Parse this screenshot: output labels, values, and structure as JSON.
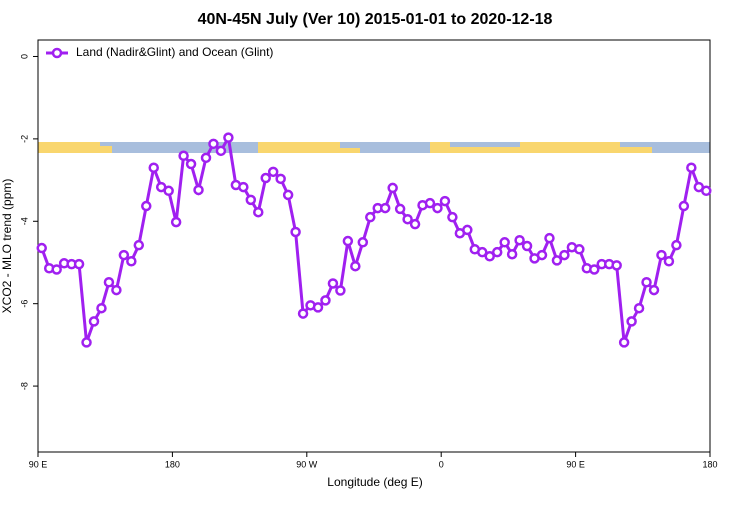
{
  "chart_data": {
    "type": "line",
    "title": "40N-45N July (Ver 10)   2015-01-01 to 2020-12-18",
    "x_label": "Longitude (deg E)",
    "y_label": "XCO2 - MLO trend (ppm)",
    "legend": "top-left",
    "xlim": [
      90,
      540
    ],
    "xticks": [
      {
        "value": 90,
        "label": "90 E"
      },
      180,
      {
        "value": 270,
        "label": "90 W"
      },
      {
        "value": 360,
        "label": "0"
      },
      {
        "value": 450,
        "label": "90 E"
      },
      {
        "value": 540,
        "label": "180"
      }
    ],
    "ylim": [
      -9.6,
      0.4
    ],
    "yticks": [
      0,
      -2,
      -4,
      -6,
      -8
    ],
    "x": [
      92.5,
      97.5,
      102.5,
      107.5,
      112.5,
      117.5,
      122.5,
      127.5,
      132.5,
      137.5,
      142.5,
      147.5,
      152.5,
      157.5,
      162.5,
      167.5,
      172.5,
      177.5,
      182.5,
      187.5,
      192.5,
      197.5,
      202.5,
      207.5,
      212.5,
      217.5,
      222.5,
      227.5,
      232.5,
      237.5,
      242.5,
      247.5,
      252.5,
      257.5,
      262.5,
      267.5,
      272.5,
      277.5,
      282.5,
      287.5,
      292.5,
      297.5,
      302.5,
      307.5,
      312.5,
      317.5,
      322.5,
      327.5,
      332.5,
      337.5,
      342.5,
      347.5,
      352.5,
      357.5,
      362.5,
      367.5,
      372.5,
      377.5,
      382.5,
      387.5,
      392.5,
      397.5,
      402.5,
      407.5,
      412.5,
      417.5,
      422.5,
      427.5,
      432.5,
      437.5,
      442.5,
      447.5,
      452.5,
      457.5,
      462.5,
      467.5,
      472.5,
      477.5,
      482.5,
      487.5,
      492.5,
      497.5,
      502.5,
      507.5,
      512.5,
      517.5,
      522.5,
      527.5,
      532.5,
      537.5
    ],
    "series": [
      {
        "name": "Land (Nadir&Glint) and Ocean (Glint)",
        "color": "#a020f0",
        "values": [
          -4.65,
          -5.14,
          -5.17,
          -5.02,
          -5.04,
          -5.04,
          -6.94,
          -6.43,
          -6.11,
          -5.48,
          -5.67,
          -4.82,
          -4.97,
          -4.58,
          -3.63,
          -2.7,
          -3.17,
          -3.26,
          -4.02,
          -2.41,
          -2.61,
          -3.24,
          -2.46,
          -2.12,
          -2.29,
          -1.97,
          -3.12,
          -3.17,
          -3.48,
          -3.78,
          -2.95,
          -2.8,
          -2.97,
          -3.36,
          -4.26,
          -6.24,
          -6.04,
          -6.09,
          -5.92,
          -5.51,
          -5.68,
          -4.48,
          -5.09,
          -4.51,
          -3.9,
          -3.68,
          -3.68,
          -3.19,
          -3.7,
          -3.95,
          -4.07,
          -3.61,
          -3.56,
          -3.68,
          -3.51,
          -3.9,
          -4.29,
          -4.21,
          -4.68,
          -4.75,
          -4.85,
          -4.75,
          -4.51,
          -4.8,
          -4.46,
          -4.6,
          -4.9,
          -4.82,
          -4.41,
          -4.95,
          -4.82,
          -4.63,
          -4.68,
          -5.14,
          -5.17,
          -5.04,
          -5.04,
          -5.07,
          -6.94,
          -6.43,
          -6.11,
          -5.48,
          -5.67,
          -4.82,
          -4.97,
          -4.58,
          -3.63,
          -2.7,
          -3.17,
          -3.26
        ]
      }
    ]
  }
}
